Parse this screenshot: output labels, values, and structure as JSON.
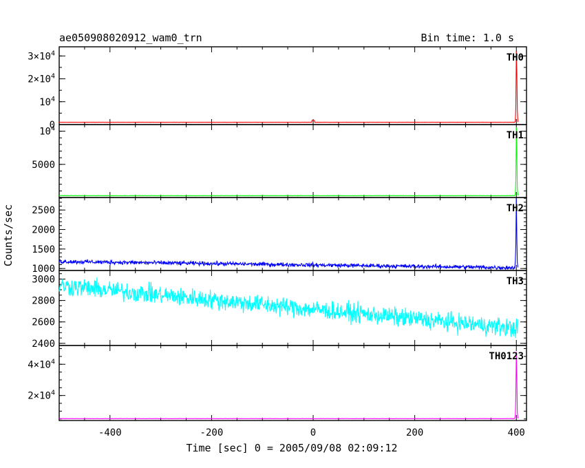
{
  "chart_data": {
    "type": "line",
    "title": "ae050908020912_wam0_trn",
    "bin_label": "Bin time: 1.0 s",
    "xlabel": "Time [sec] 0 = 2005/09/08 02:09:12",
    "ylabel": "Counts/sec",
    "xlim": [
      -500,
      420
    ],
    "x_ticks": [
      -400,
      -200,
      0,
      200,
      400
    ],
    "panels": [
      {
        "name": "TH0",
        "color": "#ff0000",
        "ylim": [
          0,
          34000
        ],
        "y_ticks": [
          {
            "v": 0,
            "t": "0"
          },
          {
            "v": 10000,
            "t": "10^4"
          },
          {
            "v": 20000,
            "t": "2×10^4"
          },
          {
            "v": 30000,
            "t": "3×10^4"
          }
        ],
        "minor_step": 5000,
        "baseline": 1000,
        "noise": 40,
        "trend": 0,
        "spike_x": [
          398,
          399,
          400,
          401,
          402,
          403
        ],
        "spike_y": [
          1500,
          8000,
          32000,
          22000,
          6000,
          1100
        ]
      },
      {
        "name": "TH1",
        "color": "#00ff00",
        "ylim": [
          0,
          11000
        ],
        "y_ticks": [
          {
            "v": 5000,
            "t": "5000"
          },
          {
            "v": 10000,
            "t": "10^4"
          }
        ],
        "minor_step": 1000,
        "baseline": 280,
        "noise": 25,
        "trend": 0,
        "spike_x": [
          398,
          399,
          400,
          401,
          402,
          403
        ],
        "spike_y": [
          500,
          2500,
          10600,
          6000,
          1200,
          320
        ]
      },
      {
        "name": "TH2",
        "color": "#0000ff",
        "ylim": [
          950,
          2820
        ],
        "y_ticks": [
          {
            "v": 1000,
            "t": "1000"
          },
          {
            "v": 1500,
            "t": "1500"
          },
          {
            "v": 2000,
            "t": "2000"
          },
          {
            "v": 2500,
            "t": "2500"
          }
        ],
        "minor_step": 100,
        "baseline": 1180,
        "noise": 45,
        "trend": -160,
        "spike_x": [
          398,
          399,
          400,
          401,
          402,
          403
        ],
        "spike_y": [
          1200,
          1600,
          2800,
          1800,
          1150,
          1030
        ]
      },
      {
        "name": "TH3",
        "color": "#00ffff",
        "ylim": [
          2380,
          3080
        ],
        "y_ticks": [
          {
            "v": 2400,
            "t": "2400"
          },
          {
            "v": 2600,
            "t": "2600"
          },
          {
            "v": 2800,
            "t": "2800"
          },
          {
            "v": 3000,
            "t": "3000"
          }
        ],
        "minor_step": 50,
        "baseline": 2940,
        "noise": 75,
        "trend": -400,
        "spike_x": [],
        "spike_y": []
      },
      {
        "name": "TH0123",
        "color": "#ff00ff",
        "ylim": [
          4000,
          52000
        ],
        "y_ticks": [
          {
            "v": 20000,
            "t": "2×10^4"
          },
          {
            "v": 40000,
            "t": "4×10^4"
          }
        ],
        "minor_step": 5000,
        "baseline": 5200,
        "noise": 60,
        "trend": 0,
        "spike_x": [
          398,
          399,
          400,
          401,
          402,
          403
        ],
        "spike_y": [
          7000,
          20000,
          48000,
          30000,
          9000,
          5300
        ]
      }
    ]
  }
}
